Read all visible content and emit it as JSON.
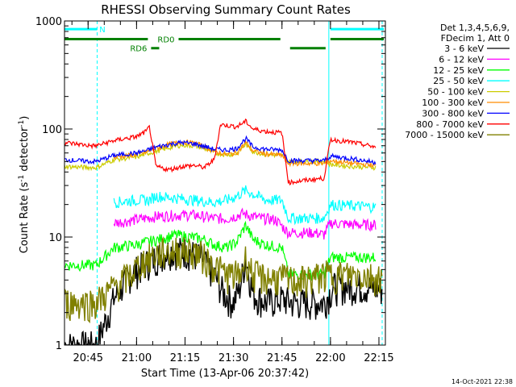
{
  "chart_data": {
    "type": "line",
    "title": "RHESSI Observing Summary Count Rates",
    "xlabel": "Start Time (13-Apr-06 20:37:42)",
    "ylabel_main": "Count Rate (s",
    "ylabel_sup1": "-1",
    "ylabel_mid": " detector",
    "ylabel_sup2": "-1",
    "ylabel_end": ")",
    "y_scale": "log",
    "ylim": [
      1,
      1000
    ],
    "xlim_min": [
      37.7,
      137
    ],
    "y_ticks": [
      {
        "v": 1,
        "label": "1"
      },
      {
        "v": 10,
        "label": "10"
      },
      {
        "v": 100,
        "label": "100"
      },
      {
        "v": 1000,
        "label": "1000"
      }
    ],
    "x_ticks": [
      {
        "v": 45,
        "label": "20:45"
      },
      {
        "v": 60,
        "label": "21:00"
      },
      {
        "v": 75,
        "label": "21:15"
      },
      {
        "v": 90,
        "label": "21:30"
      },
      {
        "v": 105,
        "label": "21:45"
      },
      {
        "v": 120,
        "label": "22:00"
      },
      {
        "v": 135,
        "label": "22:15"
      }
    ],
    "legend_header": [
      "Det 1,3,4,5,6,9,",
      "FDecim 1, Att 0"
    ],
    "legend_position": "right",
    "series": [
      {
        "name": "3 - 6 keV",
        "color": "#000000",
        "points": [
          [
            37.7,
            1.0
          ],
          [
            47.5,
            1.0
          ],
          [
            53.0,
            2.7
          ],
          [
            58,
            4.5
          ],
          [
            62,
            5.5
          ],
          [
            66,
            6.5
          ],
          [
            70,
            7.5
          ],
          [
            75,
            7.5
          ],
          [
            80,
            6.5
          ],
          [
            84,
            4.5
          ],
          [
            87,
            3.0
          ],
          [
            90,
            2.5
          ],
          [
            92,
            3.5
          ],
          [
            93.8,
            6.5
          ],
          [
            96,
            3.0
          ],
          [
            100,
            2.5
          ],
          [
            105,
            2.7
          ],
          [
            108,
            2.5
          ],
          [
            112,
            2.5
          ],
          [
            118,
            2.5
          ],
          [
            121,
            3.5
          ],
          [
            130,
            3.5
          ],
          [
            136,
            3.3
          ]
        ]
      },
      {
        "name": "6 - 12 keV",
        "color": "#ff00ff",
        "points": [
          [
            53,
            13.5
          ],
          [
            60,
            14.5
          ],
          [
            66,
            15.5
          ],
          [
            72,
            16.0
          ],
          [
            78,
            16.0
          ],
          [
            83,
            15.0
          ],
          [
            88,
            14.8
          ],
          [
            93,
            16.5
          ],
          [
            98,
            15.0
          ],
          [
            103,
            14.5
          ],
          [
            107,
            11.0
          ],
          [
            115,
            11.0
          ],
          [
            118,
            10.5
          ],
          [
            120,
            13.5
          ],
          [
            128,
            13.0
          ],
          [
            134,
            13.0
          ]
        ]
      },
      {
        "name": "12 - 25 keV",
        "color": "#00ff00",
        "points": [
          [
            37.7,
            5.5
          ],
          [
            46,
            5.5
          ],
          [
            47.5,
            5.5
          ],
          [
            53,
            8.0
          ],
          [
            60,
            8.5
          ],
          [
            63,
            9.0
          ],
          [
            67,
            9.5
          ],
          [
            72,
            10.5
          ],
          [
            77,
            10.0
          ],
          [
            81,
            9.5
          ],
          [
            84,
            8.5
          ],
          [
            88,
            8.0
          ],
          [
            91,
            9.0
          ],
          [
            93.8,
            13.0
          ],
          [
            96,
            9.5
          ],
          [
            100,
            8.5
          ],
          [
            105,
            8.0
          ],
          [
            107,
            4.5
          ],
          [
            114,
            4.5
          ],
          [
            118,
            4.5
          ],
          [
            120,
            6.5
          ],
          [
            127,
            6.5
          ],
          [
            134,
            6.5
          ]
        ]
      },
      {
        "name": "25 - 50 keV",
        "color": "#00ffff",
        "points": [
          [
            53,
            21
          ],
          [
            60,
            22
          ],
          [
            64,
            22
          ],
          [
            66,
            24
          ],
          [
            72,
            23
          ],
          [
            78,
            22
          ],
          [
            84,
            21
          ],
          [
            88,
            22
          ],
          [
            91,
            24
          ],
          [
            93.8,
            27
          ],
          [
            96,
            25
          ],
          [
            100,
            22
          ],
          [
            105,
            22
          ],
          [
            107,
            15
          ],
          [
            114,
            15
          ],
          [
            118,
            15
          ],
          [
            120,
            20
          ],
          [
            127,
            19.5
          ],
          [
            134,
            19
          ]
        ]
      },
      {
        "name": "50 - 100 keV",
        "color": "#cccc00",
        "points": [
          [
            37.7,
            45
          ],
          [
            46,
            44
          ],
          [
            47.5,
            44
          ],
          [
            53,
            52
          ],
          [
            60,
            55
          ],
          [
            63,
            59
          ],
          [
            66,
            62
          ],
          [
            70,
            67
          ],
          [
            74,
            71
          ],
          [
            78,
            70
          ],
          [
            81,
            66
          ],
          [
            84,
            60
          ],
          [
            88,
            58
          ],
          [
            91,
            59
          ],
          [
            93.8,
            72
          ],
          [
            96,
            62
          ],
          [
            100,
            58
          ],
          [
            105,
            57
          ],
          [
            107,
            50
          ],
          [
            114,
            50
          ],
          [
            118,
            50
          ],
          [
            120,
            47
          ],
          [
            127,
            45
          ],
          [
            134,
            44
          ]
        ]
      },
      {
        "name": "100 - 300 keV",
        "color": "#ff8c00",
        "points": [
          [
            53,
            55
          ],
          [
            60,
            58
          ],
          [
            63,
            61
          ],
          [
            66,
            66
          ],
          [
            70,
            72
          ],
          [
            74,
            76
          ],
          [
            78,
            74
          ],
          [
            81,
            69
          ],
          [
            84,
            62
          ],
          [
            88,
            58
          ],
          [
            91,
            60
          ],
          [
            93.8,
            75
          ],
          [
            96,
            63
          ],
          [
            100,
            59
          ],
          [
            105,
            57
          ],
          [
            107,
            48
          ],
          [
            114,
            48
          ],
          [
            118,
            48
          ],
          [
            120,
            51
          ],
          [
            127,
            48
          ],
          [
            134,
            46
          ]
        ]
      },
      {
        "name": "300 - 800 keV",
        "color": "#0000ff",
        "points": [
          [
            37.7,
            52
          ],
          [
            46,
            50
          ],
          [
            47.5,
            50
          ],
          [
            53,
            57
          ],
          [
            60,
            60
          ],
          [
            63,
            63
          ],
          [
            66,
            68
          ],
          [
            70,
            72
          ],
          [
            74,
            75
          ],
          [
            78,
            73
          ],
          [
            81,
            69
          ],
          [
            84,
            65
          ],
          [
            88,
            64
          ],
          [
            91,
            66
          ],
          [
            93.8,
            82
          ],
          [
            96,
            68
          ],
          [
            100,
            65
          ],
          [
            105,
            64
          ],
          [
            107,
            51
          ],
          [
            114,
            51
          ],
          [
            118,
            51
          ],
          [
            120,
            56
          ],
          [
            127,
            53
          ],
          [
            134,
            49
          ]
        ]
      },
      {
        "name": "800 - 7000 keV",
        "color": "#ff0000",
        "points": [
          [
            37.7,
            75
          ],
          [
            46,
            70
          ],
          [
            47.5,
            70
          ],
          [
            53,
            78
          ],
          [
            57,
            82
          ],
          [
            60,
            85
          ],
          [
            63,
            95
          ],
          [
            64,
            105
          ],
          [
            66,
            45
          ],
          [
            70,
            42
          ],
          [
            74,
            45
          ],
          [
            78,
            46
          ],
          [
            81,
            44
          ],
          [
            84,
            52
          ],
          [
            86,
            110
          ],
          [
            88,
            108
          ],
          [
            91,
            105
          ],
          [
            93.8,
            118
          ],
          [
            96,
            100
          ],
          [
            100,
            95
          ],
          [
            105,
            92
          ],
          [
            107,
            32
          ],
          [
            114,
            34
          ],
          [
            118,
            35
          ],
          [
            120,
            80
          ],
          [
            127,
            75
          ],
          [
            134,
            68
          ]
        ]
      },
      {
        "name": "7000 - 15000 keV",
        "color": "#808000",
        "points": [
          [
            37.7,
            2.5
          ],
          [
            47.5,
            2.5
          ],
          [
            53,
            3.5
          ],
          [
            58,
            4.5
          ],
          [
            62,
            6.0
          ],
          [
            66,
            7.0
          ],
          [
            70,
            7.5
          ],
          [
            74,
            7.5
          ],
          [
            78,
            7.5
          ],
          [
            81,
            6.5
          ],
          [
            84,
            5.5
          ],
          [
            88,
            4.5
          ],
          [
            92,
            4.5
          ],
          [
            93.8,
            6.5
          ],
          [
            96,
            4.5
          ],
          [
            100,
            4.2
          ],
          [
            105,
            4.2
          ],
          [
            108,
            4.0
          ],
          [
            112,
            4.0
          ],
          [
            118,
            4.5
          ],
          [
            121,
            4.5
          ],
          [
            126,
            4.5
          ],
          [
            130,
            4.5
          ],
          [
            136,
            4.2
          ]
        ]
      }
    ],
    "flag_bars": [
      {
        "label": "N",
        "color": "#00ffff",
        "y": 840,
        "segments": [
          [
            37.7,
            47.8
          ],
          [
            120,
            136.5
          ]
        ],
        "label_at": 48.5
      },
      {
        "label": "RD0",
        "color": "#008000",
        "y": 680,
        "segments": [
          [
            37.7,
            63.5
          ],
          [
            73,
            104.5
          ],
          [
            120,
            136.5
          ]
        ],
        "label_at": 66.5
      },
      {
        "label": "RD6",
        "color": "#008000",
        "y": 560,
        "segments": [
          [
            64.5,
            67
          ],
          [
            107.5,
            118.5
          ]
        ],
        "label_at": 58
      }
    ],
    "vlines": [
      {
        "x": 37.7,
        "color": "#00ffff",
        "dashed": false
      },
      {
        "x": 47.8,
        "color": "#00ffff",
        "dashed": true
      },
      {
        "x": 119.5,
        "color": "#00ffff",
        "dashed": false
      },
      {
        "x": 136,
        "color": "#00ffff",
        "dashed": true
      }
    ],
    "timestamp": "14-Oct-2021 22:38"
  }
}
